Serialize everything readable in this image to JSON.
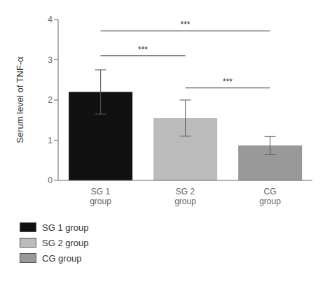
{
  "chart_data": {
    "type": "bar",
    "categories": [
      "SG 1\ngroup",
      "SG 2\ngroup",
      "CG\ngroup"
    ],
    "values": [
      2.2,
      1.55,
      0.87
    ],
    "errors": [
      0.55,
      0.45,
      0.22
    ],
    "colors": [
      "#111111",
      "#bbbbbb",
      "#999999"
    ],
    "ylabel": "Serum level of TNF-α",
    "ylim": [
      0,
      4
    ],
    "yticks": [
      0,
      1,
      2,
      3,
      4
    ],
    "grid": false,
    "legend": "bottom",
    "legend_labels": [
      "SG 1 group",
      "SG 2 group",
      "CG group"
    ],
    "significance_brackets": [
      {
        "x1": "SG 1\ngroup",
        "x2": "SG 2\ngroup",
        "y": 3.1,
        "label": "***"
      },
      {
        "x1": "SG 1\ngroup",
        "x2": "CG\ngroup",
        "y": 3.72,
        "label": "***"
      },
      {
        "x1": "SG 2\ngroup",
        "x2": "CG\ngroup",
        "y": 2.3,
        "label": "***"
      }
    ]
  }
}
